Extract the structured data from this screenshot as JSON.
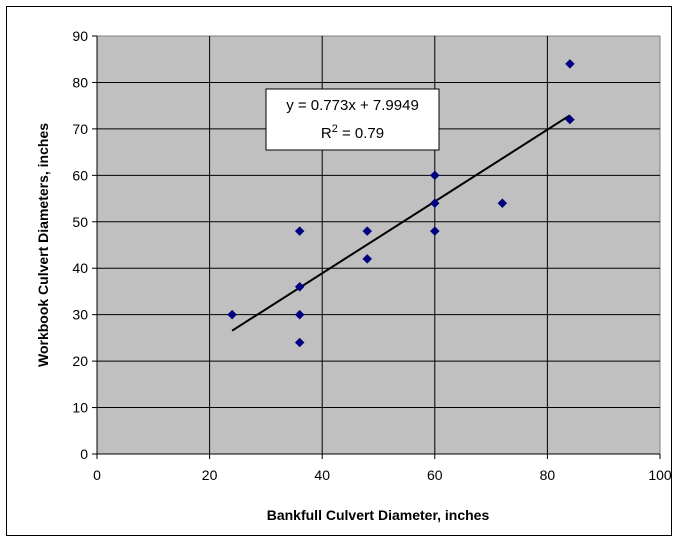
{
  "chart_data": {
    "type": "scatter",
    "title": "",
    "xlabel": "Bankfull Culvert Diameter, inches",
    "ylabel": "Workbook Culvert Diameters, inches",
    "xlim": [
      0,
      100
    ],
    "ylim": [
      0,
      90
    ],
    "x_ticks": [
      "0",
      "20",
      "40",
      "60",
      "80",
      "100"
    ],
    "y_ticks": [
      "0",
      "10",
      "20",
      "30",
      "40",
      "50",
      "60",
      "70",
      "80",
      "90"
    ],
    "grid": true,
    "plot_background": "#c0c0c0",
    "marker_color": "#000080",
    "points": [
      {
        "x": 24,
        "y": 30
      },
      {
        "x": 36,
        "y": 48
      },
      {
        "x": 36,
        "y": 36
      },
      {
        "x": 36,
        "y": 30
      },
      {
        "x": 36,
        "y": 24
      },
      {
        "x": 48,
        "y": 48
      },
      {
        "x": 48,
        "y": 42
      },
      {
        "x": 60,
        "y": 60
      },
      {
        "x": 60,
        "y": 54
      },
      {
        "x": 60,
        "y": 48
      },
      {
        "x": 72,
        "y": 54
      },
      {
        "x": 84,
        "y": 84
      },
      {
        "x": 84,
        "y": 72
      }
    ],
    "trendline": {
      "type": "linear",
      "slope": 0.773,
      "intercept": 7.9949,
      "x_range": [
        24,
        84
      ],
      "equation_label": "y = 0.773x + 7.9949",
      "r2_label_prefix": "R",
      "r2_label_sup": "2",
      "r2_label_value": " = 0.79"
    }
  }
}
